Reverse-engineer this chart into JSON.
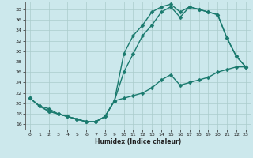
{
  "xlabel": "Humidex (Indice chaleur)",
  "xlim": [
    -0.5,
    23.5
  ],
  "ylim": [
    15.0,
    39.5
  ],
  "yticks": [
    16,
    18,
    20,
    22,
    24,
    26,
    28,
    30,
    32,
    34,
    36,
    38
  ],
  "xticks": [
    0,
    1,
    2,
    3,
    4,
    5,
    6,
    7,
    8,
    9,
    10,
    11,
    12,
    13,
    14,
    15,
    16,
    17,
    18,
    19,
    20,
    21,
    22,
    23
  ],
  "bg_color": "#cce8ec",
  "grid_color": "#aacccc",
  "line_color": "#1a7a6e",
  "line1_y": [
    21,
    19.5,
    18.5,
    18,
    17.5,
    17,
    16.5,
    16.5,
    17.5,
    20.5,
    29.5,
    33,
    35,
    37.5,
    38.5,
    39,
    37.5,
    38.5,
    38,
    37.5,
    37,
    32.5,
    29,
    27
  ],
  "line2_y": [
    21,
    19.5,
    18.5,
    18,
    17.5,
    17,
    16.5,
    16.5,
    17.5,
    20.5,
    26,
    29.5,
    33,
    35,
    37.5,
    38.5,
    36.5,
    38.5,
    38,
    37.5,
    37,
    32.5,
    29,
    27
  ],
  "line3_y": [
    21,
    19.5,
    19,
    18,
    17.5,
    17,
    16.5,
    16.5,
    17.5,
    20.5,
    21,
    21.5,
    22,
    23,
    24.5,
    25.5,
    23.5,
    24,
    24.5,
    25,
    26,
    26.5,
    27,
    27
  ],
  "marker": "D",
  "markersize": 2.5,
  "linewidth": 1.0
}
